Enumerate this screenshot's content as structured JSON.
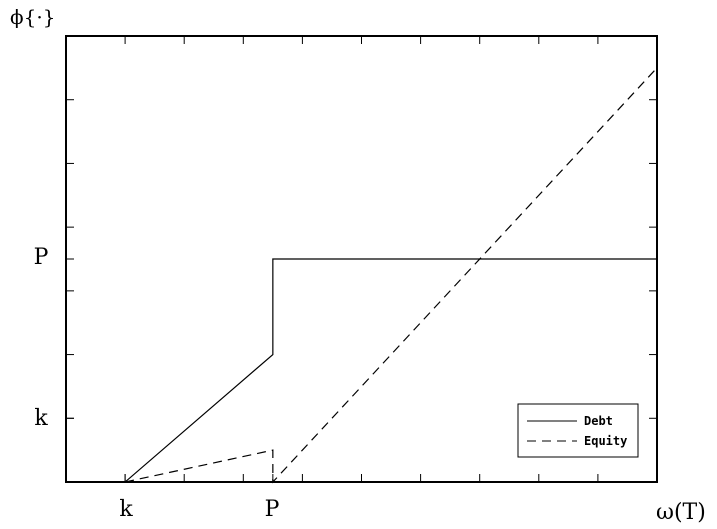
{
  "chart_data": {
    "type": "line",
    "ylabel": "ϕ{·}",
    "xlabel": "ω(T)",
    "xticklabels": [
      {
        "value": 1,
        "label": "k"
      },
      {
        "value": 3.5,
        "label": "P"
      }
    ],
    "yticklabels": [
      {
        "value": 1,
        "label": "k"
      },
      {
        "value": 3.5,
        "label": "P"
      }
    ],
    "xlim": [
      0,
      10
    ],
    "ylim": [
      0,
      7
    ],
    "grid": false,
    "legend": "bottom-right",
    "series": [
      {
        "name": "Debt",
        "style": "solid",
        "color": "#000000",
        "points": [
          [
            1,
            0
          ],
          [
            3.5,
            2
          ],
          [
            3.5,
            3.5
          ],
          [
            10,
            3.5
          ]
        ]
      },
      {
        "name": "Equity",
        "style": "dashed",
        "color": "#000000",
        "points": [
          [
            1,
            0
          ],
          [
            3.5,
            0.5
          ],
          [
            3.5,
            0
          ],
          [
            10,
            6.5
          ]
        ]
      }
    ]
  }
}
